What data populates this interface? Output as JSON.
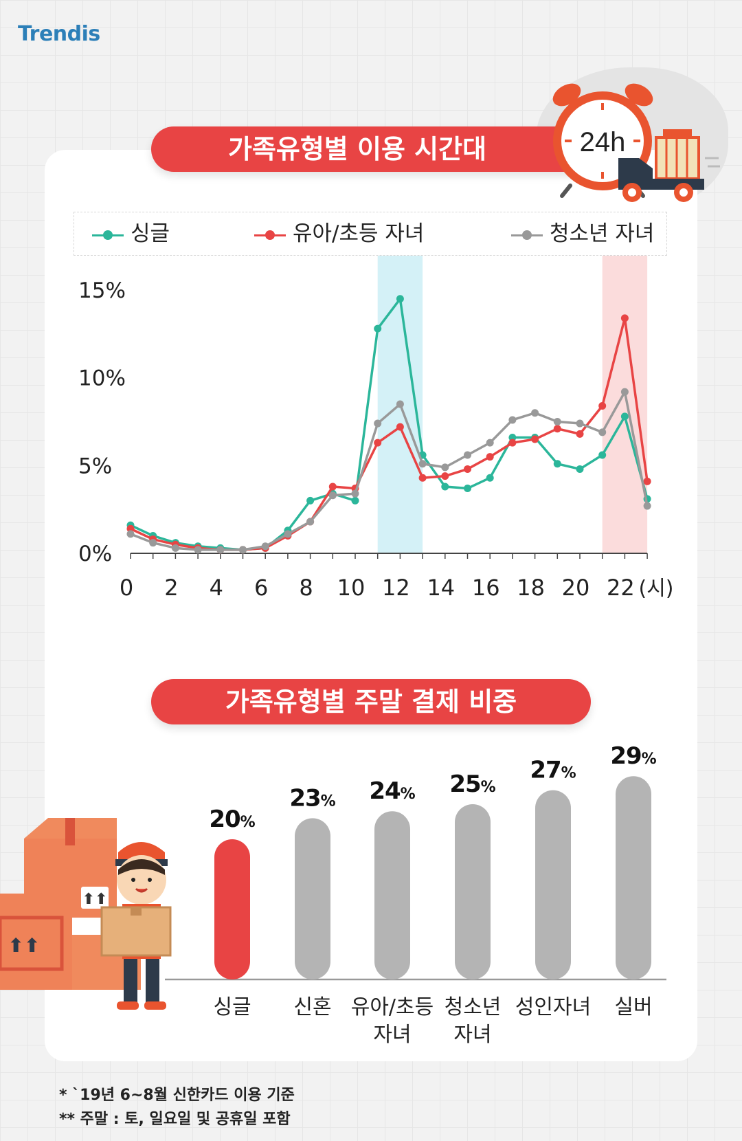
{
  "logo": "Trendis",
  "clock_label": "24h",
  "chart_data": [
    {
      "type": "line",
      "title": "가족유형별 이용 시간대",
      "x": [
        0,
        1,
        2,
        3,
        4,
        5,
        6,
        7,
        8,
        9,
        10,
        11,
        12,
        13,
        14,
        15,
        16,
        17,
        18,
        19,
        20,
        21,
        22,
        23
      ],
      "x_tick_labels": [
        "0",
        "2",
        "4",
        "6",
        "8",
        "10",
        "12",
        "14",
        "16",
        "18",
        "20",
        "22"
      ],
      "x_unit": "(시)",
      "y_tick_labels": [
        "0%",
        "5%",
        "10%",
        "15%"
      ],
      "ylim": [
        0,
        15
      ],
      "y_unit": "%",
      "highlight_ranges": [
        {
          "from": 11,
          "to": 13,
          "color": "#d4f1f7"
        },
        {
          "from": 21,
          "to": 23,
          "color": "#fbdcdc"
        }
      ],
      "legend_position": "top",
      "series": [
        {
          "name": "싱글",
          "color": "#2bb69a",
          "values": [
            1.6,
            1.0,
            0.6,
            0.4,
            0.3,
            0.2,
            0.3,
            1.3,
            3.0,
            3.4,
            3.0,
            12.8,
            14.5,
            5.6,
            3.8,
            3.7,
            4.3,
            6.6,
            6.6,
            5.1,
            4.8,
            5.6,
            7.8,
            3.1
          ]
        },
        {
          "name": "유아/초등 자녀",
          "color": "#e84444",
          "values": [
            1.4,
            0.8,
            0.5,
            0.3,
            0.2,
            0.2,
            0.3,
            1.0,
            1.8,
            3.8,
            3.7,
            6.3,
            7.2,
            4.3,
            4.4,
            4.8,
            5.5,
            6.3,
            6.5,
            7.1,
            6.8,
            8.4,
            13.4,
            4.1
          ]
        },
        {
          "name": "청소년 자녀",
          "color": "#999999",
          "values": [
            1.1,
            0.6,
            0.3,
            0.2,
            0.2,
            0.2,
            0.4,
            1.1,
            1.8,
            3.3,
            3.4,
            7.4,
            8.5,
            5.1,
            4.9,
            5.6,
            6.3,
            7.6,
            8.0,
            7.5,
            7.4,
            6.9,
            9.2,
            2.7
          ]
        }
      ]
    },
    {
      "type": "bar",
      "title": "가족유형별 주말 결제 비중",
      "categories": [
        "싱글",
        "신혼",
        "유아/초등\n자녀",
        "청소년\n자녀",
        "성인자녀",
        "실버"
      ],
      "values": [
        20,
        23,
        24,
        25,
        27,
        29
      ],
      "value_labels": [
        "20",
        "23",
        "24",
        "25",
        "27",
        "29"
      ],
      "value_unit": "%",
      "colors": [
        "#e84444",
        "#b4b4b4",
        "#b4b4b4",
        "#b4b4b4",
        "#b4b4b4",
        "#b4b4b4"
      ]
    }
  ],
  "footnotes": [
    "* `19년 6~8월 신한카드 이용 기준",
    "** 주말 : 토, 일요일 및 공휴일 포함"
  ]
}
